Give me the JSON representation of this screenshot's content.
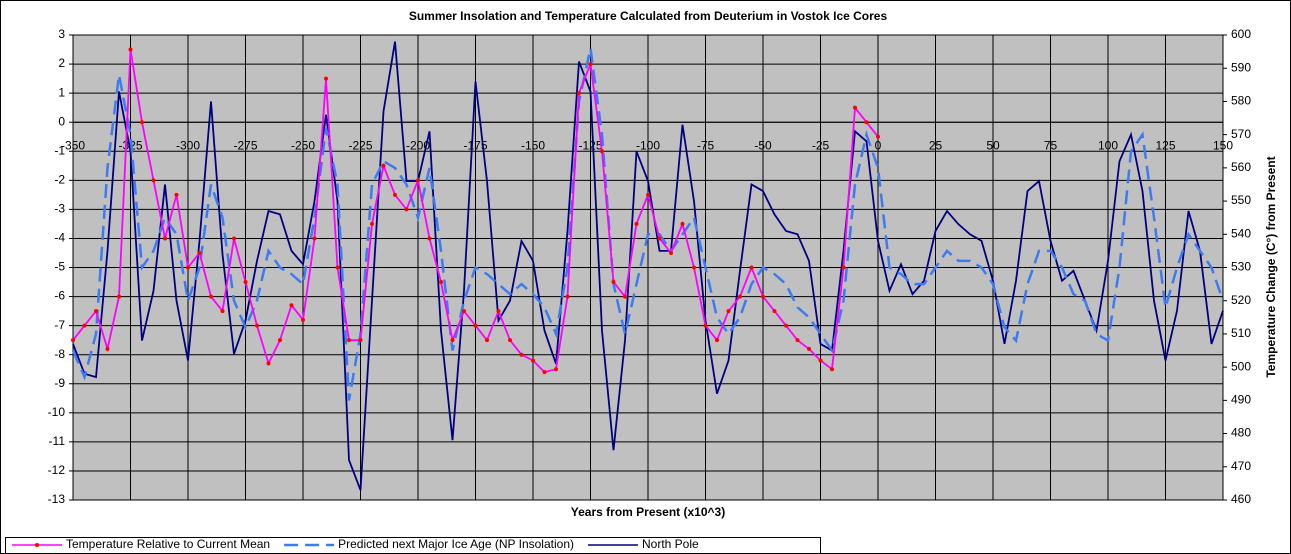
{
  "chart_data": {
    "type": "line",
    "title": "Summer Insolation and Temperature Calculated from Deuterium in Vostok Ice Cores",
    "x_label": "Years from Present (x10^3)",
    "y2_label": "Temperature Change (C°) from Present",
    "x": [
      -350,
      -345,
      -340,
      -335,
      -330,
      -325,
      -320,
      -315,
      -310,
      -305,
      -300,
      -295,
      -290,
      -285,
      -280,
      -275,
      -270,
      -265,
      -260,
      -255,
      -250,
      -245,
      -240,
      -235,
      -230,
      -225,
      -220,
      -215,
      -210,
      -205,
      -200,
      -195,
      -190,
      -185,
      -180,
      -175,
      -170,
      -165,
      -160,
      -155,
      -150,
      -145,
      -140,
      -135,
      -130,
      -125,
      -120,
      -115,
      -110,
      -105,
      -100,
      -95,
      -90,
      -85,
      -80,
      -75,
      -70,
      -65,
      -60,
      -55,
      -50,
      -45,
      -40,
      -35,
      -30,
      -25,
      -20,
      -15,
      -10,
      -5,
      0,
      5,
      10,
      15,
      20,
      25,
      30,
      35,
      40,
      45,
      50,
      55,
      60,
      65,
      70,
      75,
      80,
      85,
      90,
      95,
      100,
      105,
      110,
      115,
      120,
      125,
      130,
      135,
      140,
      145,
      150
    ],
    "series": [
      {
        "name": "Temperature Relative to Current Mean",
        "color": "#ff00ff",
        "marker_color": "#ff0000",
        "axis": "y",
        "style": "solid",
        "values": [
          -7.5,
          -7,
          -6.5,
          -7.8,
          -6,
          2.5,
          0,
          -2,
          -4,
          -2.5,
          -5,
          -4.5,
          -6,
          -6.5,
          -4,
          -5.5,
          -7,
          -8.3,
          -7.5,
          -6.3,
          -6.8,
          -4,
          1.5,
          -5,
          -7.5,
          -7.5,
          -3.5,
          -1.5,
          -2.5,
          -3,
          -2,
          -4,
          -5.5,
          -7.5,
          -6.5,
          -7,
          -7.5,
          -6.5,
          -7.5,
          -8,
          -8.2,
          -8.6,
          -8.5,
          -6,
          1,
          2,
          -1,
          -5.5,
          -6,
          -3.5,
          -2.5,
          -4,
          -4.5,
          -3.5,
          -5,
          -7,
          -7.5,
          -6.5,
          -6,
          -5,
          -6,
          -6.5,
          -7,
          -7.5,
          -7.8,
          -8.2,
          -8.5,
          -5,
          0.5,
          0,
          -0.5,
          null,
          null,
          null,
          null,
          null,
          null,
          null,
          null,
          null,
          null,
          null,
          null,
          null,
          null,
          null,
          null,
          null,
          null,
          null,
          null,
          null,
          null,
          null,
          null,
          null,
          null,
          null,
          null,
          null,
          null
        ]
      },
      {
        "name": "Predicted next Major Ice Age (NP Insolation)",
        "color": "#3d7bf0",
        "axis": "y2",
        "style": "dashed",
        "values": [
          505,
          497,
          510,
          560,
          588,
          570,
          530,
          535,
          545,
          540,
          520,
          530,
          555,
          545,
          520,
          512,
          520,
          535,
          530,
          528,
          525,
          545,
          572,
          555,
          490,
          510,
          555,
          562,
          560,
          555,
          545,
          560,
          535,
          505,
          520,
          530,
          528,
          525,
          522,
          525,
          522,
          518,
          510,
          530,
          580,
          596,
          570,
          525,
          510,
          525,
          540,
          540,
          535,
          540,
          545,
          530,
          515,
          510,
          515,
          525,
          530,
          528,
          525,
          518,
          515,
          510,
          505,
          520,
          555,
          570,
          560,
          530,
          528,
          525,
          525,
          530,
          535,
          532,
          532,
          530,
          525,
          512,
          508,
          525,
          535,
          535,
          530,
          522,
          520,
          510,
          508,
          530,
          565,
          570,
          545,
          518,
          530,
          540,
          535,
          530,
          520
        ]
      },
      {
        "name": "North Pole",
        "color": "#000080",
        "axis": "y2",
        "style": "solid",
        "values": [
          507,
          498,
          497,
          535,
          583,
          565,
          508,
          523,
          555,
          520,
          502,
          538,
          580,
          534,
          504,
          514,
          532,
          547,
          546,
          535,
          531,
          550,
          576,
          550,
          472,
          463,
          520,
          577,
          598,
          556,
          556,
          571,
          511,
          478,
          523,
          586,
          556,
          514,
          520,
          538,
          532,
          511,
          501,
          541,
          592,
          583,
          511,
          475,
          508,
          565,
          556,
          535,
          535,
          573,
          550,
          514,
          492,
          502,
          529,
          555,
          553,
          546,
          541,
          540,
          532,
          507,
          505,
          535,
          571,
          568,
          538,
          523,
          531,
          522,
          526,
          541,
          547,
          543,
          540,
          538,
          526,
          507,
          526,
          553,
          556,
          538,
          526,
          529,
          520,
          511,
          532,
          562,
          570,
          553,
          520,
          502,
          517,
          547,
          535,
          507,
          517
        ]
      }
    ],
    "xlim": [
      -350,
      150
    ],
    "xticks": [
      -350,
      -325,
      -300,
      -275,
      -250,
      -225,
      -200,
      -175,
      -150,
      -125,
      -100,
      -75,
      -50,
      -25,
      0,
      25,
      50,
      75,
      100,
      125,
      150
    ],
    "ylim": [
      -13,
      3
    ],
    "yticks": [
      -13,
      -12,
      -11,
      -10,
      -9,
      -8,
      -7,
      -6,
      -5,
      -4,
      -3,
      -2,
      -1,
      0,
      1,
      2,
      3
    ],
    "y2lim": [
      460,
      600
    ],
    "y2ticks": [
      460,
      470,
      480,
      490,
      500,
      510,
      520,
      530,
      540,
      550,
      560,
      570,
      580,
      590,
      600
    ],
    "grid": true,
    "legend": "bottom-left"
  }
}
